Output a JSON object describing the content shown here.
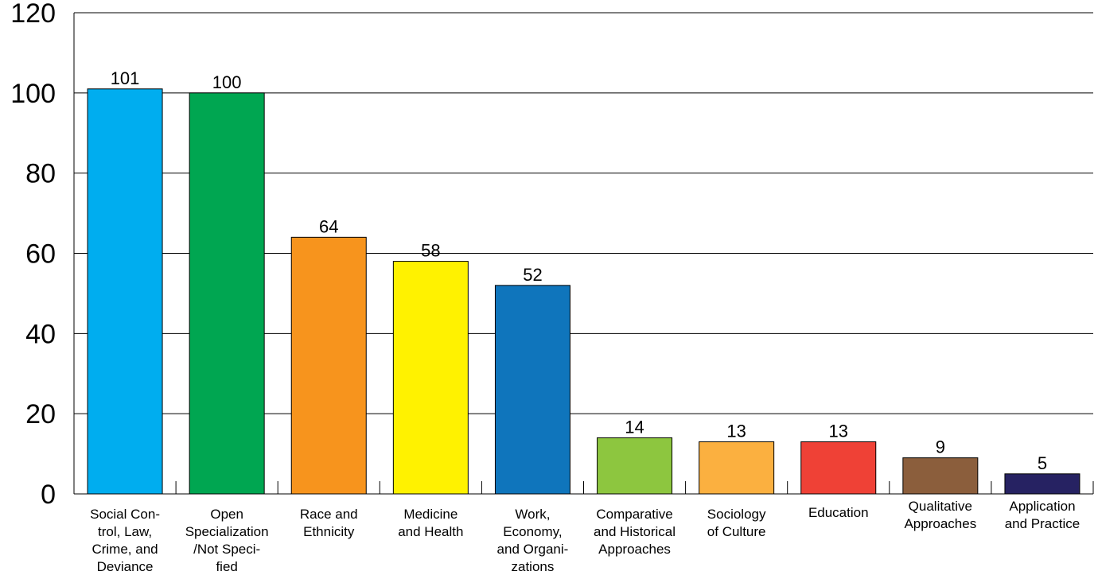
{
  "chart_data": {
    "type": "bar",
    "title": "",
    "xlabel": "",
    "ylabel": "",
    "ylim": [
      0,
      120
    ],
    "yticks": [
      0,
      20,
      40,
      60,
      80,
      100,
      120
    ],
    "grid": true,
    "legend": "none",
    "categories": [
      "Social Control, Law, Crime, and Deviance",
      "Open Specialization /Not Specified",
      "Race and Ethnicity",
      "Medicine and Health",
      "Work, Economy, and Organizations",
      "Comparative and Historical Approaches",
      "Sociology of Culture",
      "Education",
      "Qualitative Approaches",
      "Application and Practice"
    ],
    "category_lines": [
      [
        "Social Con-",
        "trol, Law,",
        "Crime, and",
        "Deviance"
      ],
      [
        "Open",
        "Specialization",
        "/Not Speci-",
        "fied"
      ],
      [
        "Race and",
        "Ethnicity"
      ],
      [
        "Medicine",
        "and Health"
      ],
      [
        "Work,",
        "Economy,",
        "and Organi-",
        "zations"
      ],
      [
        "Comparative",
        "and Historical",
        "Approaches"
      ],
      [
        "Sociology",
        "of Culture"
      ],
      [
        "Education"
      ],
      [
        "Qualitative",
        "Approaches"
      ],
      [
        "Application",
        "and Practice"
      ]
    ],
    "values": [
      101,
      100,
      64,
      58,
      52,
      14,
      13,
      13,
      9,
      5
    ],
    "colors": [
      "#00adef",
      "#00a651",
      "#f7941d",
      "#fff200",
      "#0f75bc",
      "#8dc63f",
      "#fbb040",
      "#ef4136",
      "#8b5e3c",
      "#262262"
    ]
  }
}
